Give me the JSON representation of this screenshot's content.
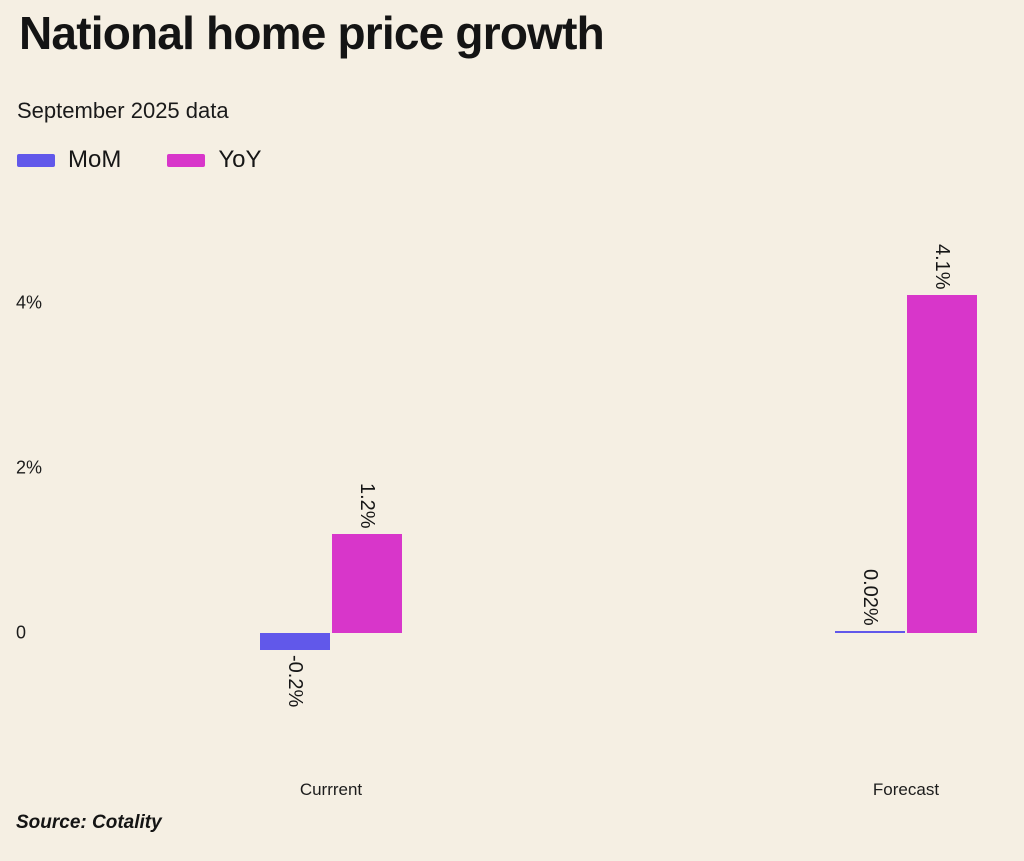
{
  "header": {
    "title": "National home price growth",
    "subtitle": "September 2025 data"
  },
  "legend": [
    {
      "name": "mom",
      "label": "MoM",
      "color": "#6158ea"
    },
    {
      "name": "yoy",
      "label": "YoY",
      "color": "#d836ca"
    }
  ],
  "source": "Source: Cotality",
  "colors": {
    "background": "#f5efe3",
    "text": "#191919",
    "mom": "#6158ea",
    "yoy": "#d836ca"
  },
  "chart_data": {
    "type": "bar",
    "title": "National home price growth",
    "subtitle": "September 2025 data",
    "categories": [
      "Currrent",
      "Forecast"
    ],
    "series": [
      {
        "name": "MoM",
        "color": "#6158ea",
        "values": [
          -0.2,
          0.02
        ],
        "labels": [
          "-0.2%",
          "0.02%"
        ]
      },
      {
        "name": "YoY",
        "color": "#d836ca",
        "values": [
          1.2,
          4.1
        ],
        "labels": [
          "1.2%",
          "4.1%"
        ]
      }
    ],
    "y_ticks": [
      {
        "value": 4,
        "label": "4%"
      },
      {
        "value": 2,
        "label": "2%"
      },
      {
        "value": 0,
        "label": "0"
      }
    ],
    "ylim": [
      -1,
      4.6
    ],
    "grid": false,
    "legend_position": "top-left",
    "value_label_rotation": 90,
    "source": "Source: Cotality"
  }
}
